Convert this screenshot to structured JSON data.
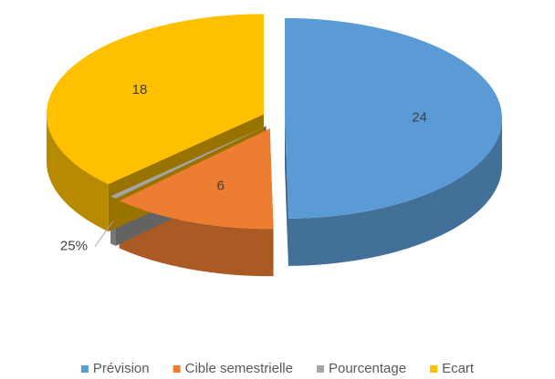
{
  "chart_data": {
    "type": "pie",
    "categories": [
      "Prévision",
      "Cible semestrielle",
      "Pourcentage",
      "Ecart"
    ],
    "values": [
      24,
      6,
      0.25,
      18
    ],
    "value_labels": [
      "24",
      "6",
      "25%",
      "18"
    ],
    "colors": [
      "#5b9bd5",
      "#ed7d31",
      "#a5a5a5",
      "#ffc000"
    ],
    "legend": "bottom"
  }
}
